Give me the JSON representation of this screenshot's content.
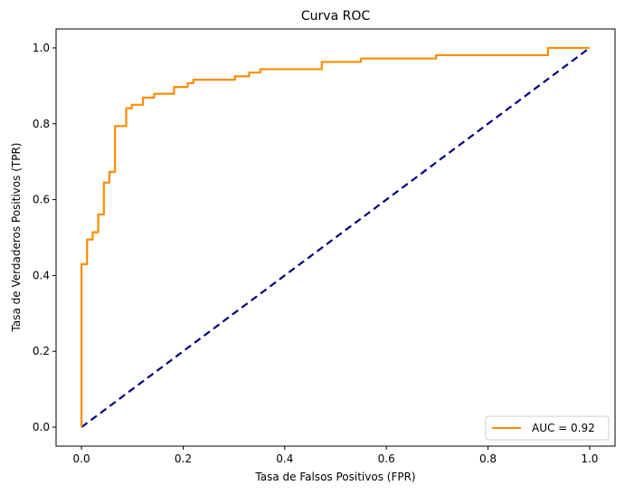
{
  "chart_data": {
    "type": "line",
    "title": "Curva ROC",
    "xlabel": "Tasa de Falsos Positivos (FPR)",
    "ylabel": "Tasa de Verdaderos Positivos (TPR)",
    "xlim": [
      -0.05,
      1.05
    ],
    "ylim": [
      -0.05,
      1.05
    ],
    "xticks": [
      0.0,
      0.2,
      0.4,
      0.6,
      0.8,
      1.0
    ],
    "yticks": [
      0.0,
      0.2,
      0.4,
      0.6,
      0.8,
      1.0
    ],
    "xtick_labels": [
      "0.0",
      "0.2",
      "0.4",
      "0.6",
      "0.8",
      "1.0"
    ],
    "ytick_labels": [
      "0.0",
      "0.2",
      "0.4",
      "0.6",
      "0.8",
      "1.0"
    ],
    "grid": false,
    "legend_position": "lower-right",
    "series": [
      {
        "name": "AUC = 0.92",
        "color": "#ff8c00",
        "line_style": "solid",
        "x": [
          0.0,
          0.0,
          0.011,
          0.011,
          0.022,
          0.022,
          0.033,
          0.033,
          0.044,
          0.044,
          0.055,
          0.055,
          0.066,
          0.066,
          0.088,
          0.088,
          0.099,
          0.099,
          0.121,
          0.121,
          0.143,
          0.143,
          0.182,
          0.182,
          0.209,
          0.209,
          0.22,
          0.22,
          0.302,
          0.302,
          0.33,
          0.33,
          0.352,
          0.352,
          0.473,
          0.473,
          0.55,
          0.55,
          0.698,
          0.698,
          0.918,
          0.918,
          1.0
        ],
        "y": [
          0.0,
          0.43,
          0.43,
          0.495,
          0.495,
          0.514,
          0.514,
          0.561,
          0.561,
          0.645,
          0.645,
          0.673,
          0.673,
          0.794,
          0.794,
          0.841,
          0.841,
          0.85,
          0.85,
          0.869,
          0.869,
          0.879,
          0.879,
          0.897,
          0.897,
          0.907,
          0.907,
          0.916,
          0.916,
          0.925,
          0.925,
          0.935,
          0.935,
          0.944,
          0.944,
          0.963,
          0.963,
          0.972,
          0.972,
          0.981,
          0.981,
          1.0,
          1.0
        ]
      },
      {
        "name": "",
        "color": "#000080",
        "line_style": "dashed",
        "x": [
          0.0,
          1.0
        ],
        "y": [
          0.0,
          1.0
        ]
      }
    ]
  }
}
